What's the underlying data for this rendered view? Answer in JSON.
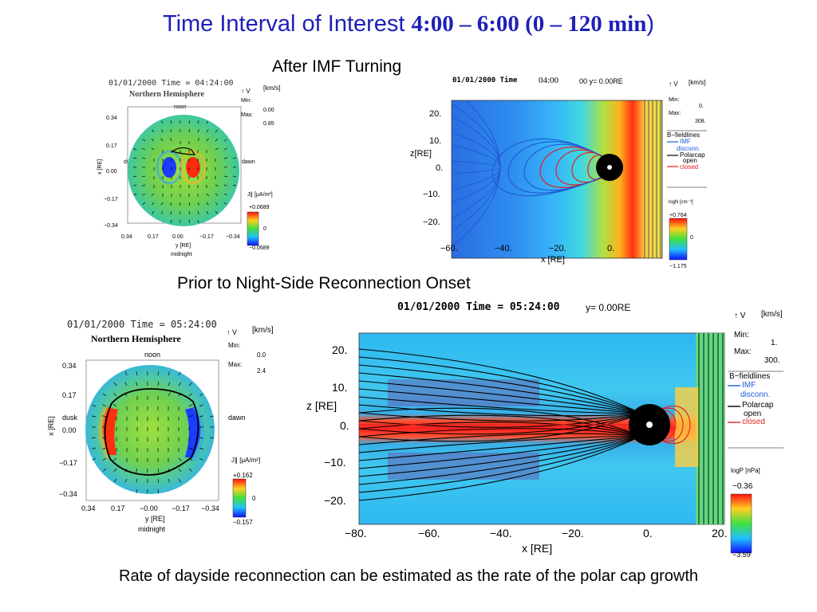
{
  "title": {
    "part1": "Time Interval of Interest ",
    "part2": "4:00 – 6:00 (0 – 120 min",
    "part3": ")"
  },
  "headings": {
    "after_turning": "After IMF Turning",
    "prior_onset": "Prior to Night-Side Reconnection Onset"
  },
  "footer": "Rate of dayside reconnection can be estimated as the rate of the polar cap growth",
  "top_polar": {
    "header": "01/01/2000 Time = 04:24:00",
    "hemisphere": "Northern Hemisphere",
    "noon": "noon",
    "midnight": "midnight",
    "dusk": "dusk",
    "dawn": "dawn",
    "vector_label": "↑ V",
    "unit": "[km/s]",
    "min_label": "Min:",
    "min_value": "0.00",
    "max_label": "Max:",
    "max_value": "0.85",
    "j_label": "J∥ [μA/m²]",
    "cb_top": "+0.0689",
    "cb_mid": "0",
    "cb_bot": "−0.0689",
    "y_ticks": [
      "0.34",
      "0.17",
      "0.00",
      "−0.17",
      "−0.34"
    ],
    "x_ticks": [
      "0.34",
      "0.17",
      "0.00",
      "−0.17",
      "−0.34"
    ],
    "x_axis": "y [RE]",
    "y_axis": "x [RE]"
  },
  "top_mag": {
    "header": "01/01/2000 Time",
    "time_overlay": "04:00",
    "header_right": "00  y= 0.00RE",
    "vector_label": "↑ V",
    "unit": "[km/s]",
    "min_label": "Min:",
    "min_value": "0.",
    "max_label": "Max:",
    "max_value": "308.",
    "legend_title": "B−fieldlines",
    "legend_imf": "IMF",
    "legend_disconn": "disconn.",
    "legend_polarcap": "Polarcap",
    "legend_open": "open",
    "legend_closed": "closed",
    "cb_label": "logN [cm⁻³]",
    "cb_top": "+0.764",
    "cb_mid": "0",
    "cb_bot": "−1.175",
    "y_ticks": [
      "20.",
      "10.",
      "0.",
      "−10.",
      "−20."
    ],
    "x_ticks": [
      "−60.",
      "−40.",
      "−20.",
      "0."
    ],
    "x_axis": "x [RE]",
    "y_axis": "z[RE]"
  },
  "bottom_polar": {
    "header": "01/01/2000 Time = 05:24:00",
    "hemisphere": "Northern Hemisphere",
    "noon": "noon",
    "midnight": "midnight",
    "dusk": "dusk",
    "dawn": "dawn",
    "vector_label": "↑ V",
    "unit": "[km/s]",
    "min_label": "Min:",
    "min_value": "0.0",
    "max_label": "Max:",
    "max_value": "2.4",
    "j_label": "J∥ [μA/m²]",
    "cb_top": "+0.162",
    "cb_mid": "0",
    "cb_bot": "−0.157",
    "y_ticks": [
      "0.34",
      "0.17",
      "0.00",
      "−0.17",
      "−0.34"
    ],
    "x_ticks": [
      "0.34",
      "0.17",
      "−0.00",
      "−0.17",
      "−0.34"
    ],
    "x_axis": "y [RE]",
    "y_axis": "x [RE]"
  },
  "bottom_mag": {
    "header": "01/01/2000 Time = 05:24:00",
    "header_right": "y= 0.00RE",
    "vector_label": "↑ V",
    "unit": "[km/s]",
    "min_label": "Min:",
    "min_value": "1.",
    "max_label": "Max:",
    "max_value": "300.",
    "legend_title": "B−fieldlines",
    "legend_imf": "IMF",
    "legend_disconn": "disconn.",
    "legend_polarcap": "Polarcap",
    "legend_open": "open",
    "legend_closed": "closed",
    "cb_label": "logP [nPa]",
    "cb_top": "−0.36",
    "cb_bot": "−3.59",
    "y_ticks": [
      "20.",
      "10.",
      "0.",
      "−10.",
      "−20."
    ],
    "x_ticks": [
      "−80.",
      "−60.",
      "−40.",
      "−20.",
      "0.",
      "20."
    ],
    "x_axis": "x [RE]",
    "y_axis": "z [RE]"
  },
  "colors": {
    "title_blue": "#1f1fb8",
    "imf_blue": "#1f5bd8",
    "closed_red": "#e02020"
  }
}
